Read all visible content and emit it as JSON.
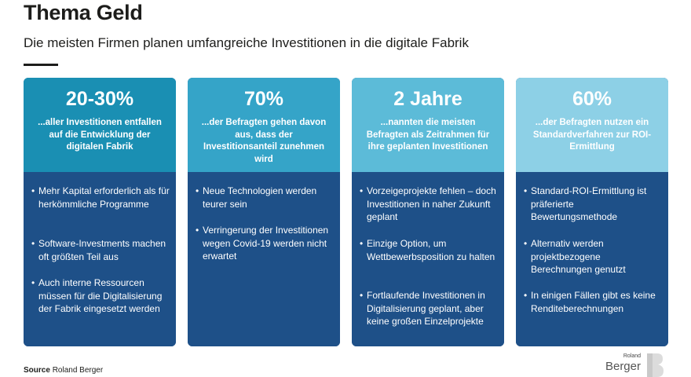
{
  "header": {
    "title": "Thema Geld",
    "subtitle": "Die meisten Firmen planen umfangreiche Investitionen in die digitale Fabrik"
  },
  "cards": [
    {
      "stat": "20-30%",
      "description": "...aller Investitionen entfallen auf die Entwicklung der digitalen Fabrik",
      "top_color": "#1a8fb3",
      "bullets": [
        "Mehr Kapital erforderlich als für herkömmliche Programme",
        "Software-Investments machen oft größten Teil aus",
        "Auch interne Ressourcen müssen für die Digitalisierung der Fabrik eingesetzt werden"
      ]
    },
    {
      "stat": "70%",
      "description": "...der Befragten gehen davon aus, dass der Investitionsanteil zunehmen wird",
      "top_color": "#35a4c8",
      "bullets": [
        "Neue Technologien werden teurer sein",
        "Verringerung der Investitionen wegen Covid-19 werden nicht erwartet"
      ]
    },
    {
      "stat": "2 Jahre",
      "description": "...nannten die meisten Befragten als Zeitrahmen für ihre geplanten Investitionen",
      "top_color": "#5cbbd8",
      "bullets": [
        "Vorzeigeprojekte fehlen – doch Investitionen in naher Zukunft geplant",
        "Einzige Option, um Wettbewerbsposition zu halten",
        "Fortlaufende Investitionen in Digitalisierung geplant, aber keine großen Einzelprojekte"
      ]
    },
    {
      "stat": "60%",
      "description": "...der Befragten nutzen ein Standardverfahren zur ROI-Ermittlung",
      "top_color": "#8dd0e6",
      "bullets": [
        "Standard-ROI-Ermittlung ist präferierte Bewertungsmethode",
        "Alternativ werden projektbezogene Berechnungen genutzt",
        "In einigen Fällen gibt es keine Renditeberechnungen"
      ]
    }
  ],
  "footer": {
    "source_label": "Source",
    "source_text": "Roland Berger",
    "logo_small": "Roland",
    "logo_big": "Berger"
  },
  "colors": {
    "card_bottom": "#1e5088",
    "text_dark": "#1d1d1b"
  }
}
